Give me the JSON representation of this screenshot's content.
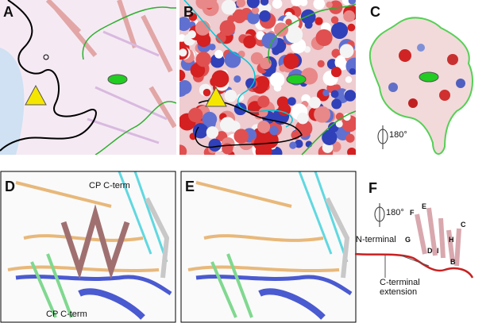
{
  "panels": [
    {
      "label": "A"
    },
    {
      "label": "B"
    },
    {
      "label": "C",
      "annotations": [
        "180°"
      ]
    },
    {
      "label": "D",
      "annotations": [
        "CP C-term",
        "CP C-term"
      ]
    },
    {
      "label": "E"
    },
    {
      "label": "F",
      "annotations": [
        "180°",
        "N-terminal",
        "C-terminal extension"
      ],
      "strands": [
        "F",
        "E",
        "G",
        "H",
        "C",
        "D",
        "I",
        "B"
      ]
    }
  ]
}
